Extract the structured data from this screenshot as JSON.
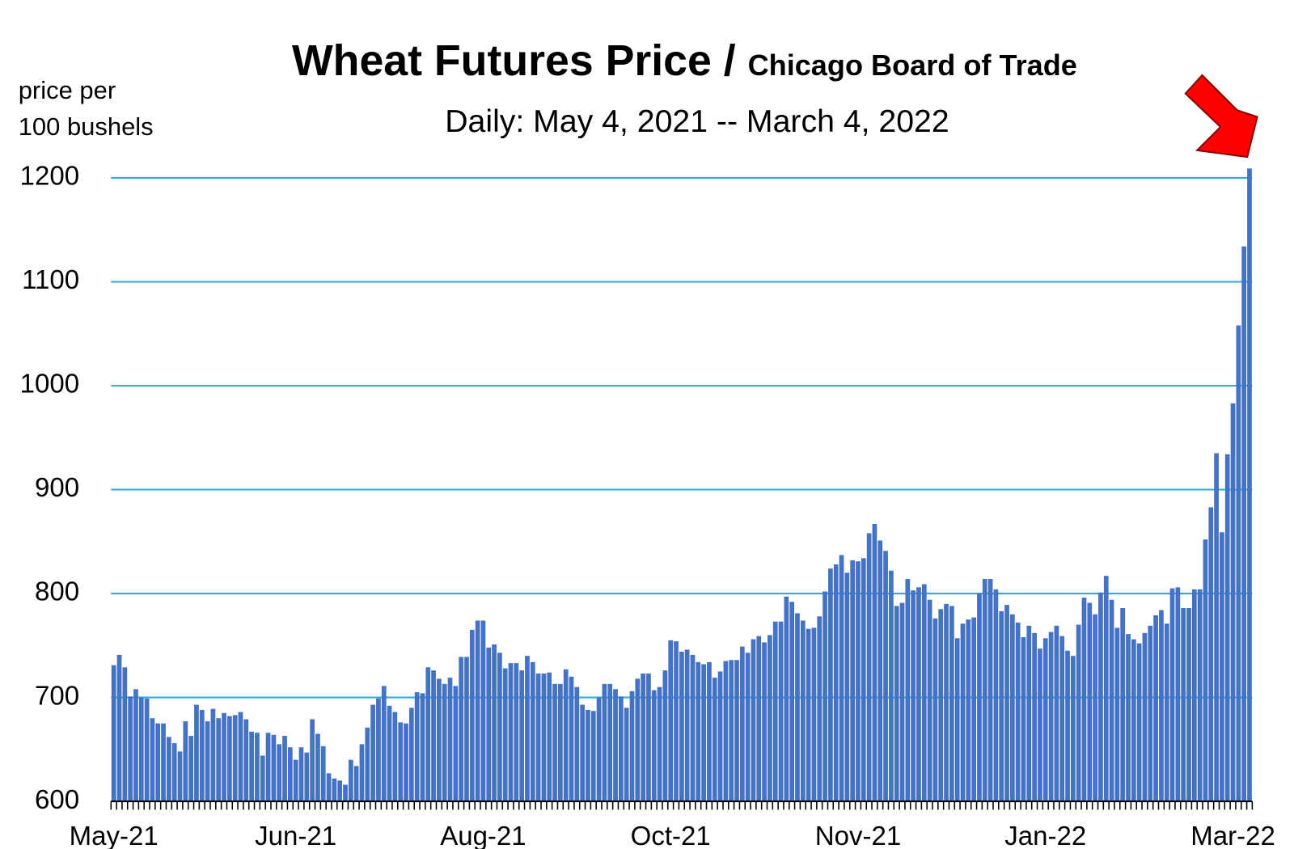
{
  "chart_data": {
    "type": "bar",
    "title": "Wheat Futures Price /",
    "title_source": "Chicago Board of Trade",
    "subtitle": "Daily: May 4, 2021 -- March 4, 2022",
    "ylabel_lines": [
      "price per",
      "100 bushels"
    ],
    "color": "#4472c4",
    "grid": true,
    "grid_color": "#29abe2",
    "ylim": [
      600,
      1200
    ],
    "yticks": [
      600,
      700,
      800,
      900,
      1000,
      1100,
      1200
    ],
    "categories": [
      "May-21",
      null,
      null,
      null,
      null,
      null,
      null,
      null,
      null,
      null,
      null,
      null,
      null,
      null,
      null,
      null,
      null,
      null,
      null,
      null,
      null,
      null,
      null,
      null,
      null,
      null,
      null,
      null,
      null,
      null,
      null,
      null,
      null,
      "Jun-21",
      null,
      null,
      null,
      null,
      null,
      null,
      null,
      null,
      null,
      null,
      null,
      null,
      null,
      null,
      null,
      null,
      null,
      null,
      null,
      null,
      null,
      null,
      null,
      null,
      null,
      null,
      null,
      null,
      null,
      null,
      null,
      null,
      null,
      "Aug-21",
      null,
      null,
      null,
      null,
      null,
      null,
      null,
      null,
      null,
      null,
      null,
      null,
      null,
      null,
      null,
      null,
      null,
      null,
      null,
      null,
      null,
      null,
      null,
      null,
      null,
      null,
      null,
      null,
      null,
      null,
      null,
      null,
      null,
      "Oct-21",
      null,
      null,
      null,
      null,
      null,
      null,
      null,
      null,
      null,
      null,
      null,
      null,
      null,
      null,
      null,
      null,
      null,
      null,
      null,
      null,
      null,
      null,
      null,
      null,
      null,
      null,
      null,
      null,
      null,
      null,
      null,
      null,
      null,
      "Nov-21",
      null,
      null,
      null,
      null,
      null,
      null,
      null,
      null,
      null,
      null,
      null,
      null,
      null,
      null,
      null,
      null,
      null,
      null,
      null,
      null,
      null,
      null,
      null,
      null,
      null,
      null,
      null,
      null,
      null,
      null,
      null,
      null,
      null,
      "Jan-22",
      null,
      null,
      null,
      null,
      null,
      null,
      null,
      null,
      null,
      null,
      null,
      null,
      null,
      null,
      null,
      null,
      null,
      null,
      null,
      null,
      null,
      null,
      null,
      null,
      null,
      null,
      null,
      null,
      null,
      null,
      null,
      null,
      null,
      "Mar-22",
      null,
      null,
      null
    ],
    "values": [
      731,
      741,
      729,
      701,
      708,
      700,
      699,
      680,
      675,
      675,
      662,
      656,
      648,
      677,
      663,
      693,
      688,
      677,
      689,
      680,
      685,
      682,
      683,
      686,
      679,
      667,
      666,
      644,
      666,
      664,
      655,
      663,
      652,
      640,
      652,
      647,
      679,
      665,
      653,
      627,
      622,
      620,
      616,
      640,
      634,
      655,
      671,
      693,
      699,
      711,
      692,
      686,
      676,
      675,
      690,
      705,
      704,
      729,
      726,
      718,
      713,
      719,
      711,
      739,
      739,
      765,
      774,
      774,
      748,
      751,
      743,
      728,
      733,
      733,
      726,
      740,
      734,
      723,
      723,
      724,
      713,
      713,
      727,
      720,
      710,
      693,
      688,
      687,
      700,
      713,
      713,
      708,
      701,
      690,
      706,
      718,
      723,
      723,
      707,
      710,
      726,
      755,
      754,
      744,
      746,
      741,
      734,
      732,
      734,
      719,
      725,
      735,
      736,
      736,
      749,
      743,
      756,
      759,
      753,
      760,
      773,
      773,
      797,
      792,
      781,
      774,
      766,
      767,
      778,
      802,
      824,
      828,
      837,
      820,
      832,
      831,
      834,
      858,
      867,
      851,
      841,
      822,
      788,
      791,
      814,
      803,
      806,
      809,
      794,
      776,
      785,
      790,
      788,
      757,
      771,
      775,
      777,
      800,
      814,
      814,
      804,
      783,
      789,
      780,
      772,
      758,
      769,
      762,
      747,
      757,
      763,
      769,
      759,
      745,
      740,
      770,
      796,
      791,
      780,
      801,
      817,
      794,
      767,
      786,
      761,
      756,
      752,
      762,
      769,
      779,
      784,
      771,
      805,
      806,
      786,
      786,
      804,
      804,
      852,
      883,
      935,
      859,
      934,
      983,
      1058,
      1134,
      1209
    ]
  }
}
